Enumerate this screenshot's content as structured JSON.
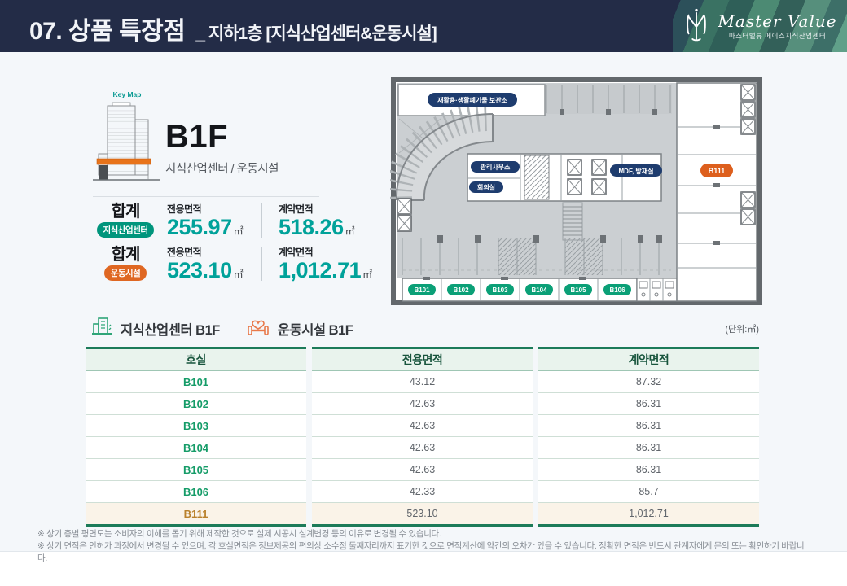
{
  "header": {
    "title": "07. 상품 특장점",
    "subtitle": "_ 지하1층 [지식산업센터&운동시설]",
    "logo": {
      "brand": "Master Value",
      "brand_sub": "마스터밸류 메이스지식산업센터"
    }
  },
  "keymap": {
    "label": "Key Map"
  },
  "floor": {
    "name": "B1F",
    "description": "지식산업센터 / 운동시설"
  },
  "summary": [
    {
      "total_label": "합계",
      "category": "지식산업센터",
      "exclusive_label": "전용면적",
      "exclusive_value": "255.97",
      "contract_label": "계약면적",
      "contract_value": "518.26",
      "unit": "㎡"
    },
    {
      "total_label": "합계",
      "category": "운동시설",
      "exclusive_label": "전용면적",
      "exclusive_value": "523.10",
      "contract_label": "계약면적",
      "contract_value": "1,012.71",
      "unit": "㎡"
    }
  ],
  "floorplan": {
    "labels": {
      "storage": "재활용·생활폐기물 보관소",
      "office": "관리사무소",
      "meeting": "회의실",
      "mdf": "MDF, 방재실",
      "b111": "B111"
    },
    "units": [
      "B101",
      "B102",
      "B103",
      "B104",
      "B105",
      "B106"
    ]
  },
  "legend": {
    "items": [
      {
        "label": "지식산업센터 B1F"
      },
      {
        "label": "운동시설 B1F"
      }
    ],
    "unit_note": "(단위:㎡)"
  },
  "table": {
    "headers": [
      "호실",
      "전용면적",
      "계약면적"
    ],
    "rows": [
      {
        "room": "B101",
        "exclusive": "43.12",
        "contract": "87.32",
        "highlight": false
      },
      {
        "room": "B102",
        "exclusive": "42.63",
        "contract": "86.31",
        "highlight": false
      },
      {
        "room": "B103",
        "exclusive": "42.63",
        "contract": "86.31",
        "highlight": false
      },
      {
        "room": "B104",
        "exclusive": "42.63",
        "contract": "86.31",
        "highlight": false
      },
      {
        "room": "B105",
        "exclusive": "42.63",
        "contract": "86.31",
        "highlight": false
      },
      {
        "room": "B106",
        "exclusive": "42.33",
        "contract": "85.7",
        "highlight": false
      },
      {
        "room": "B111",
        "exclusive": "523.10",
        "contract": "1,012.71",
        "highlight": true
      }
    ]
  },
  "footnotes": [
    "※ 상기 층별 평면도는 소비자의 이해를 돕기 위해 제작한 것으로 실제 시공시 설계변경 등의 이유로 변경될 수 있습니다.",
    "※ 상기 면적은 인허가 과정에서 변경될 수 있으며, 각 호실면적은 정보제공의 편의상 소수점 둘째자리까지 표기한 것으로 면적계산에 약간의 오차가 있을 수 있습니다. 정확한 면적은 반드시 관계자에게 문의 또는 확인하기 바랍니다."
  ],
  "colors": {
    "header_navy": "#232c47",
    "accent_teal": "#00a29a",
    "pill_teal": "#00957c",
    "pill_orange": "#df6722",
    "table_green": "#1c7b59",
    "room_green": "#159c68",
    "room_gold": "#b9812c",
    "highlight_row_bg": "#faf3e8",
    "plan_pill_navy": "#1e3c6e",
    "plan_pill_green": "#0ba077",
    "plan_pill_orange": "#dd5f1d"
  }
}
